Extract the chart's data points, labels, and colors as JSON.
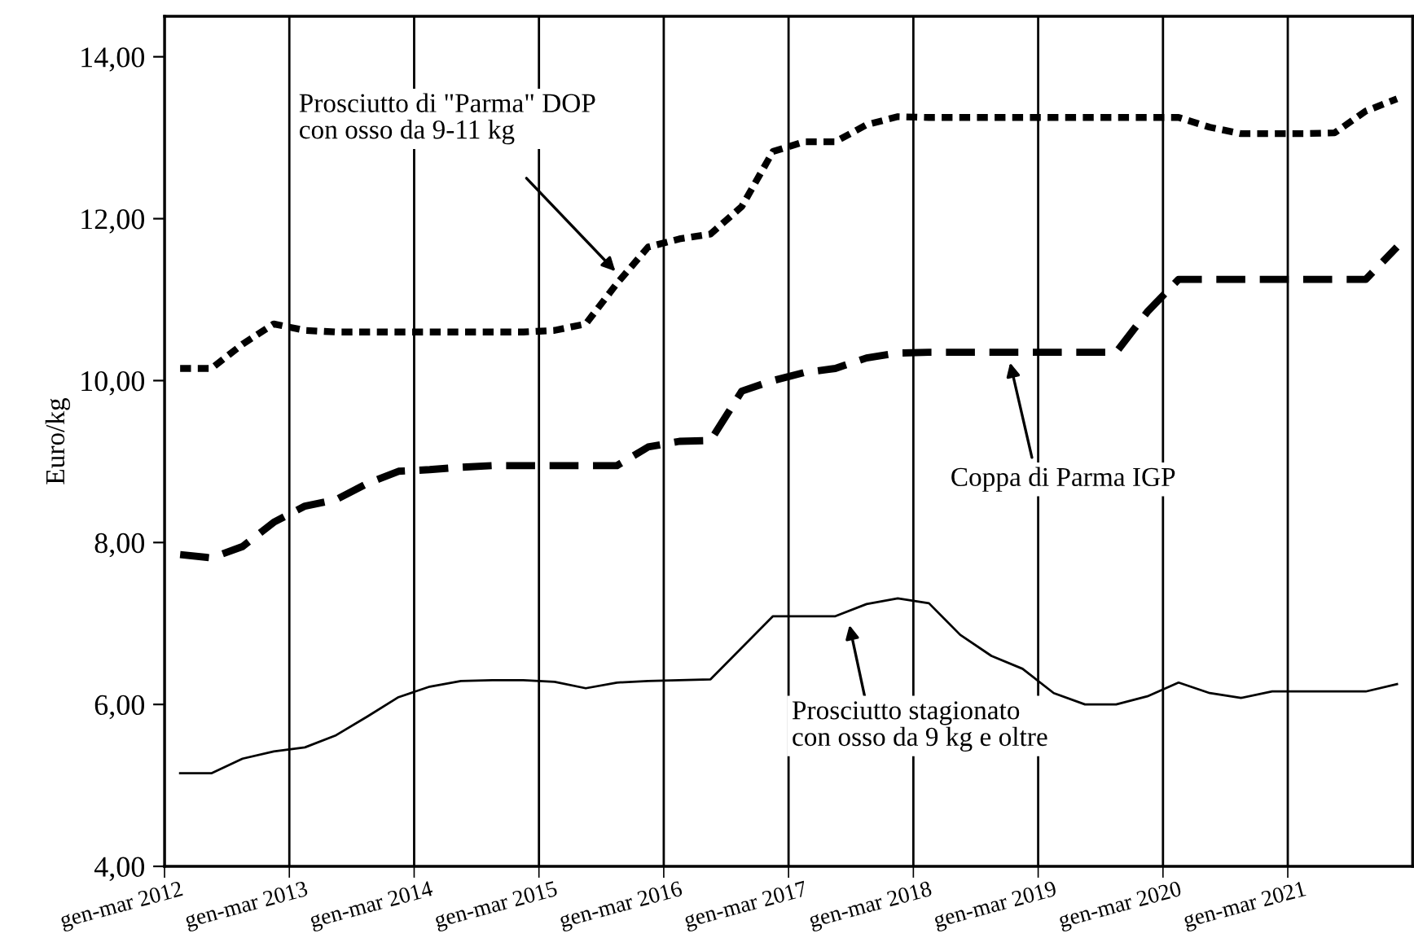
{
  "chart_data": {
    "type": "line",
    "ylabel": "Euro/kg",
    "categories": [
      "gen-mar 2012",
      null,
      null,
      null,
      "gen-mar 2013",
      null,
      null,
      null,
      "gen-mar 2014",
      null,
      null,
      null,
      "gen-mar 2015",
      null,
      null,
      null,
      "gen-mar 2016",
      null,
      null,
      null,
      "gen-mar 2017",
      null,
      null,
      null,
      "gen-mar 2018",
      null,
      null,
      null,
      "gen-mar 2019",
      null,
      null,
      null,
      "gen-mar 2020",
      null,
      null,
      null,
      "gen-mar 2021",
      null,
      null,
      null
    ],
    "series": [
      {
        "color": "#000000",
        "line_style": "dotted",
        "values": [
          10.15,
          10.15,
          10.45,
          10.7,
          10.62,
          10.6,
          10.6,
          10.6,
          10.6,
          10.6,
          10.6,
          10.6,
          10.62,
          10.7,
          11.2,
          11.65,
          11.75,
          11.81,
          12.15,
          12.83,
          12.95,
          12.95,
          13.16,
          13.26,
          13.25,
          13.25,
          13.25,
          13.25,
          13.25,
          13.25,
          13.25,
          13.25,
          13.25,
          13.13,
          13.05,
          13.05,
          13.05,
          13.06,
          13.33,
          13.48
        ]
      },
      {
        "color": "#000000",
        "line_style": "dashed",
        "values": [
          7.85,
          7.81,
          7.95,
          8.25,
          8.45,
          8.53,
          8.73,
          8.88,
          8.9,
          8.93,
          8.95,
          8.95,
          8.95,
          8.95,
          8.95,
          9.18,
          9.25,
          9.26,
          9.87,
          10.0,
          10.1,
          10.15,
          10.28,
          10.34,
          10.35,
          10.35,
          10.35,
          10.35,
          10.35,
          10.35,
          10.35,
          10.85,
          11.25,
          11.25,
          11.25,
          11.25,
          11.25,
          11.25,
          11.25,
          11.65
        ]
      },
      {
        "color": "#000000",
        "line_style": "solid",
        "values": [
          5.15,
          5.15,
          5.33,
          5.42,
          5.47,
          5.62,
          5.85,
          6.09,
          6.22,
          6.29,
          6.3,
          6.3,
          6.28,
          6.2,
          6.27,
          6.29,
          6.3,
          6.31,
          6.7,
          7.09,
          7.09,
          7.09,
          7.24,
          7.31,
          7.25,
          6.86,
          6.6,
          6.44,
          6.14,
          6.0,
          6.0,
          6.1,
          6.27,
          6.14,
          6.08,
          6.16,
          6.16,
          6.16,
          6.16,
          6.25
        ]
      }
    ],
    "ylim": [
      4,
      14.5
    ],
    "yticks": [
      {
        "value": 4,
        "label": "4,00"
      },
      {
        "value": 6,
        "label": "6,00"
      },
      {
        "value": 8,
        "label": "8,00"
      },
      {
        "value": 10,
        "label": "10,00"
      },
      {
        "value": 12,
        "label": "12,00"
      },
      {
        "value": 14,
        "label": "14,00"
      }
    ],
    "annotations": [
      "Prosciutto di \"Parma\" DOP\ncon osso da 9-11 kg",
      "Coppa di Parma IGP",
      "Prosciutto stagionato\ncon osso da 9 kg e oltre"
    ],
    "grid": "x",
    "legend": false,
    "marker": "none"
  }
}
